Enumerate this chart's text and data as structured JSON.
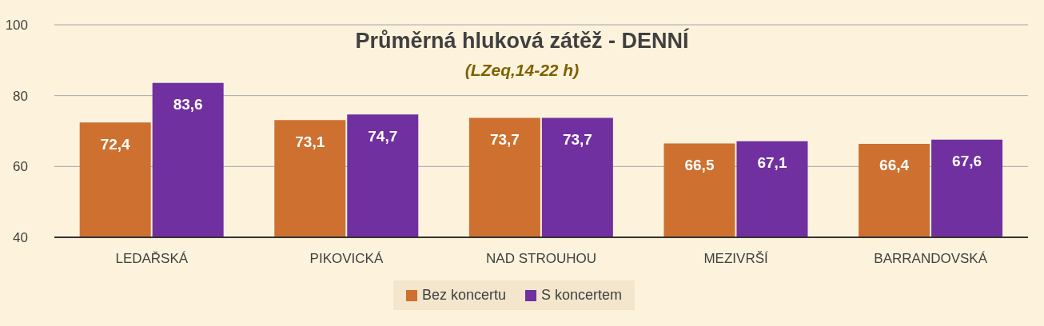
{
  "chart_data": {
    "type": "bar",
    "title": "Průměrná hluková zátěž - DENNÍ",
    "subtitle": "(LZeq,14-22 h)",
    "categories": [
      "LEDAŘSKÁ",
      "PIKOVICKÁ",
      "NAD STROUHOU",
      "MEZIVRŠÍ",
      "BARRANDOVSKÁ"
    ],
    "series": [
      {
        "name": "Bez koncertu",
        "color": "#cd7030",
        "values": [
          72.4,
          73.1,
          73.7,
          66.5,
          66.4
        ],
        "value_labels": [
          "72,4",
          "73,1",
          "73,7",
          "66,5",
          "66,4"
        ]
      },
      {
        "name": "S koncertem",
        "color": "#7030a0",
        "values": [
          83.6,
          74.7,
          73.7,
          67.1,
          67.6
        ],
        "value_labels": [
          "83,6",
          "74,7",
          "73,7",
          "67,1",
          "67,6"
        ]
      }
    ],
    "ylim": [
      40,
      100
    ],
    "yticks": [
      40,
      60,
      80,
      100
    ],
    "grid": "y",
    "legend": "bottom"
  }
}
